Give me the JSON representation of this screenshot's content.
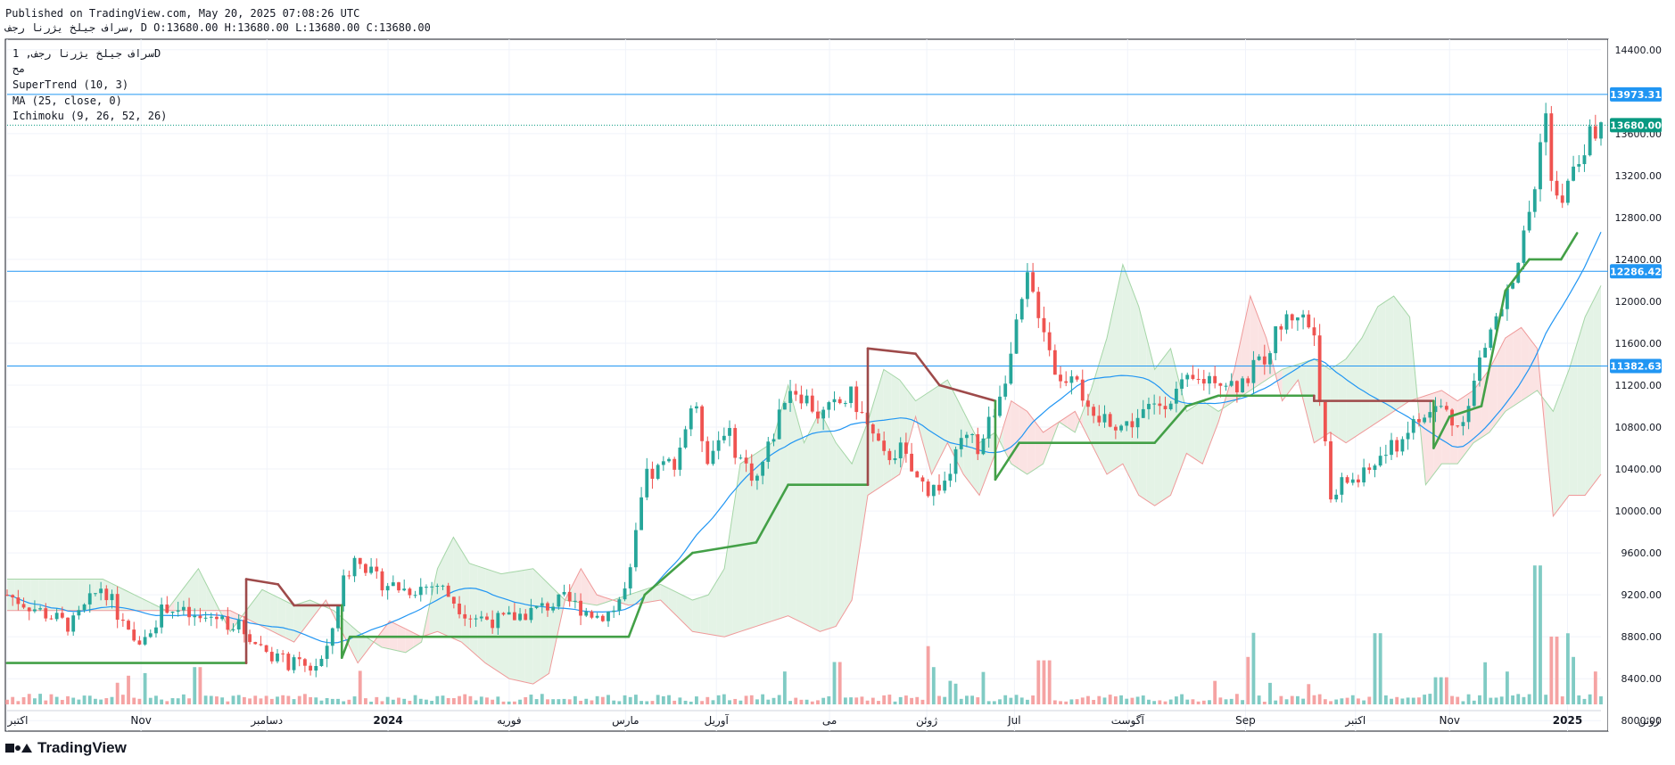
{
  "header": {
    "published": "Published on TradingView.com, May 20, 2025 07:08:26 UTC",
    "ohlc_line": "سراف جیلخ یژرنا رجف, D O:13680.00 H:13680.00 L:13680.00 C:13680.00"
  },
  "legend": {
    "symbol": "سراف جیلخ یژرنا رجف, 1D",
    "line2": "مح",
    "supertrend": "SuperTrend (10, 3)",
    "ma": "MA (25, close, 0)",
    "ichimoku": "Ichimoku (9, 26, 52, 26)"
  },
  "footer": {
    "brand": "TradingView"
  },
  "colors": {
    "up": "#26a69a",
    "down": "#ef5350",
    "vol_up": "#80cbc4",
    "vol_down": "#f5a3a3",
    "supertrend_up": "#43a047",
    "supertrend_down": "#9e4a4a",
    "ma": "#2196f3",
    "hline": "#2196f3",
    "last_price": "#089981",
    "grid": "#f0f3fa",
    "cloud_green": "#e4f3e6",
    "cloud_red": "#fbe3e3"
  },
  "chart_data": {
    "type": "candlestick",
    "interval": "1D",
    "y_axis": {
      "range": [
        7900,
        14500
      ],
      "ticks": [
        "14400.00",
        "13600.00",
        "13200.00",
        "12800.00",
        "12400.00",
        "12000.00",
        "11600.00",
        "11200.00",
        "10800.00",
        "10400.00",
        "10000.00",
        "9600.00",
        "9200.00",
        "8800.00",
        "8400.00",
        "8000.00"
      ]
    },
    "x_axis": {
      "ticks": [
        {
          "label": "اکتبر",
          "pos": 0.0
        },
        {
          "label": "Nov",
          "pos": 0.084
        },
        {
          "label": "دسامبر",
          "pos": 0.163
        },
        {
          "label": "2024",
          "pos": 0.239
        },
        {
          "label": "فوریه",
          "pos": 0.315
        },
        {
          "label": "مارس",
          "pos": 0.388
        },
        {
          "label": "آوریل",
          "pos": 0.445
        },
        {
          "label": "می",
          "pos": 0.516
        },
        {
          "label": "ژوئن",
          "pos": 0.577
        },
        {
          "label": "Jul",
          "pos": 0.632
        },
        {
          "label": "آگوست",
          "pos": 0.703
        },
        {
          "label": "Sep",
          "pos": 0.777
        },
        {
          "label": "اکتبر",
          "pos": 0.846
        },
        {
          "label": "Nov",
          "pos": 0.905
        },
        {
          "label": "2025",
          "pos": 0.979
        },
        {
          "label": "ژوئن",
          "pos": 1.03
        }
      ],
      "bold": [
        "2024",
        "2025"
      ]
    },
    "horizontal_lines": [
      {
        "value": 13973.31,
        "label": "13973.31"
      },
      {
        "value": 12286.42,
        "label": "12286.42"
      },
      {
        "value": 11382.63,
        "label": "11382.63"
      }
    ],
    "last_price": {
      "value": 13680.0,
      "label": "13680.00"
    },
    "price_anchors": [
      [
        0,
        9200
      ],
      [
        0.02,
        9050
      ],
      [
        0.04,
        8900
      ],
      [
        0.06,
        9300
      ],
      [
        0.07,
        9000
      ],
      [
        0.08,
        8700
      ],
      [
        0.1,
        9100
      ],
      [
        0.12,
        8950
      ],
      [
        0.13,
        9000
      ],
      [
        0.145,
        8900
      ],
      [
        0.16,
        8700
      ],
      [
        0.175,
        8550
      ],
      [
        0.19,
        8500
      ],
      [
        0.2,
        8600
      ],
      [
        0.21,
        9300
      ],
      [
        0.22,
        9600
      ],
      [
        0.23,
        9350
      ],
      [
        0.25,
        9250
      ],
      [
        0.27,
        9300
      ],
      [
        0.29,
        9000
      ],
      [
        0.31,
        8950
      ],
      [
        0.33,
        9050
      ],
      [
        0.35,
        9150
      ],
      [
        0.37,
        9000
      ],
      [
        0.38,
        9050
      ],
      [
        0.39,
        9300
      ],
      [
        0.4,
        10300
      ],
      [
        0.41,
        10400
      ],
      [
        0.42,
        10500
      ],
      [
        0.43,
        11050
      ],
      [
        0.44,
        10500
      ],
      [
        0.45,
        10800
      ],
      [
        0.46,
        10500
      ],
      [
        0.47,
        10300
      ],
      [
        0.48,
        10700
      ],
      [
        0.49,
        11200
      ],
      [
        0.5,
        11100
      ],
      [
        0.51,
        10900
      ],
      [
        0.52,
        11000
      ],
      [
        0.53,
        11100
      ],
      [
        0.54,
        10800
      ],
      [
        0.55,
        10500
      ],
      [
        0.56,
        10600
      ],
      [
        0.57,
        10300
      ],
      [
        0.58,
        10200
      ],
      [
        0.59,
        10300
      ],
      [
        0.6,
        10700
      ],
      [
        0.61,
        10600
      ],
      [
        0.62,
        11000
      ],
      [
        0.63,
        11500
      ],
      [
        0.64,
        12200
      ],
      [
        0.65,
        11800
      ],
      [
        0.66,
        11200
      ],
      [
        0.67,
        11400
      ],
      [
        0.68,
        10800
      ],
      [
        0.69,
        10900
      ],
      [
        0.7,
        10800
      ],
      [
        0.72,
        11000
      ],
      [
        0.74,
        11200
      ],
      [
        0.76,
        11300
      ],
      [
        0.77,
        11200
      ],
      [
        0.78,
        11300
      ],
      [
        0.79,
        11500
      ],
      [
        0.8,
        11800
      ],
      [
        0.81,
        11900
      ],
      [
        0.82,
        11700
      ],
      [
        0.83,
        10100
      ],
      [
        0.84,
        10300
      ],
      [
        0.85,
        10300
      ],
      [
        0.86,
        10500
      ],
      [
        0.87,
        10600
      ],
      [
        0.88,
        10800
      ],
      [
        0.89,
        10900
      ],
      [
        0.9,
        11000
      ],
      [
        0.91,
        10800
      ],
      [
        0.92,
        11200
      ],
      [
        0.93,
        11700
      ],
      [
        0.94,
        12000
      ],
      [
        0.95,
        12500
      ],
      [
        0.96,
        13200
      ],
      [
        0.965,
        13973
      ],
      [
        0.97,
        12900
      ],
      [
        0.98,
        13100
      ],
      [
        0.99,
        13500
      ],
      [
        1.0,
        13680
      ]
    ],
    "volume_spikes": [
      [
        0.12,
        0.22
      ],
      [
        0.52,
        0.25
      ],
      [
        0.58,
        0.22
      ],
      [
        0.65,
        0.26
      ],
      [
        0.78,
        0.28
      ],
      [
        0.86,
        0.42
      ],
      [
        0.9,
        0.16
      ],
      [
        0.96,
        0.82
      ],
      [
        0.97,
        0.4
      ],
      [
        0.98,
        0.28
      ]
    ],
    "supertrend": [
      {
        "x": 0.0,
        "y": 8550,
        "trend": "up"
      },
      {
        "x": 0.15,
        "y": 8550,
        "trend": "up"
      },
      {
        "x": 0.15,
        "y": 9350,
        "trend": "down"
      },
      {
        "x": 0.17,
        "y": 9300,
        "trend": "down"
      },
      {
        "x": 0.18,
        "y": 9100,
        "trend": "down"
      },
      {
        "x": 0.21,
        "y": 9100,
        "trend": "down"
      },
      {
        "x": 0.21,
        "y": 8600,
        "trend": "up"
      },
      {
        "x": 0.215,
        "y": 8800,
        "trend": "up"
      },
      {
        "x": 0.39,
        "y": 8800,
        "trend": "up"
      },
      {
        "x": 0.4,
        "y": 9200,
        "trend": "up"
      },
      {
        "x": 0.43,
        "y": 9600,
        "trend": "up"
      },
      {
        "x": 0.47,
        "y": 9700,
        "trend": "up"
      },
      {
        "x": 0.49,
        "y": 10250,
        "trend": "up"
      },
      {
        "x": 0.54,
        "y": 10250,
        "trend": "up"
      },
      {
        "x": 0.54,
        "y": 11550,
        "trend": "down"
      },
      {
        "x": 0.57,
        "y": 11500,
        "trend": "down"
      },
      {
        "x": 0.585,
        "y": 11200,
        "trend": "down"
      },
      {
        "x": 0.62,
        "y": 11050,
        "trend": "down"
      },
      {
        "x": 0.62,
        "y": 10300,
        "trend": "up"
      },
      {
        "x": 0.635,
        "y": 10650,
        "trend": "up"
      },
      {
        "x": 0.72,
        "y": 10650,
        "trend": "up"
      },
      {
        "x": 0.74,
        "y": 11000,
        "trend": "up"
      },
      {
        "x": 0.76,
        "y": 11100,
        "trend": "up"
      },
      {
        "x": 0.82,
        "y": 11100,
        "trend": "up"
      },
      {
        "x": 0.82,
        "y": 11050,
        "trend": "down"
      },
      {
        "x": 0.895,
        "y": 11050,
        "trend": "down"
      },
      {
        "x": 0.895,
        "y": 10600,
        "trend": "up"
      },
      {
        "x": 0.905,
        "y": 10900,
        "trend": "up"
      },
      {
        "x": 0.925,
        "y": 11000,
        "trend": "up"
      },
      {
        "x": 0.94,
        "y": 12100,
        "trend": "up"
      },
      {
        "x": 0.955,
        "y": 12400,
        "trend": "up"
      },
      {
        "x": 0.975,
        "y": 12400,
        "trend": "up"
      },
      {
        "x": 0.985,
        "y": 12650,
        "trend": "up"
      }
    ]
  }
}
